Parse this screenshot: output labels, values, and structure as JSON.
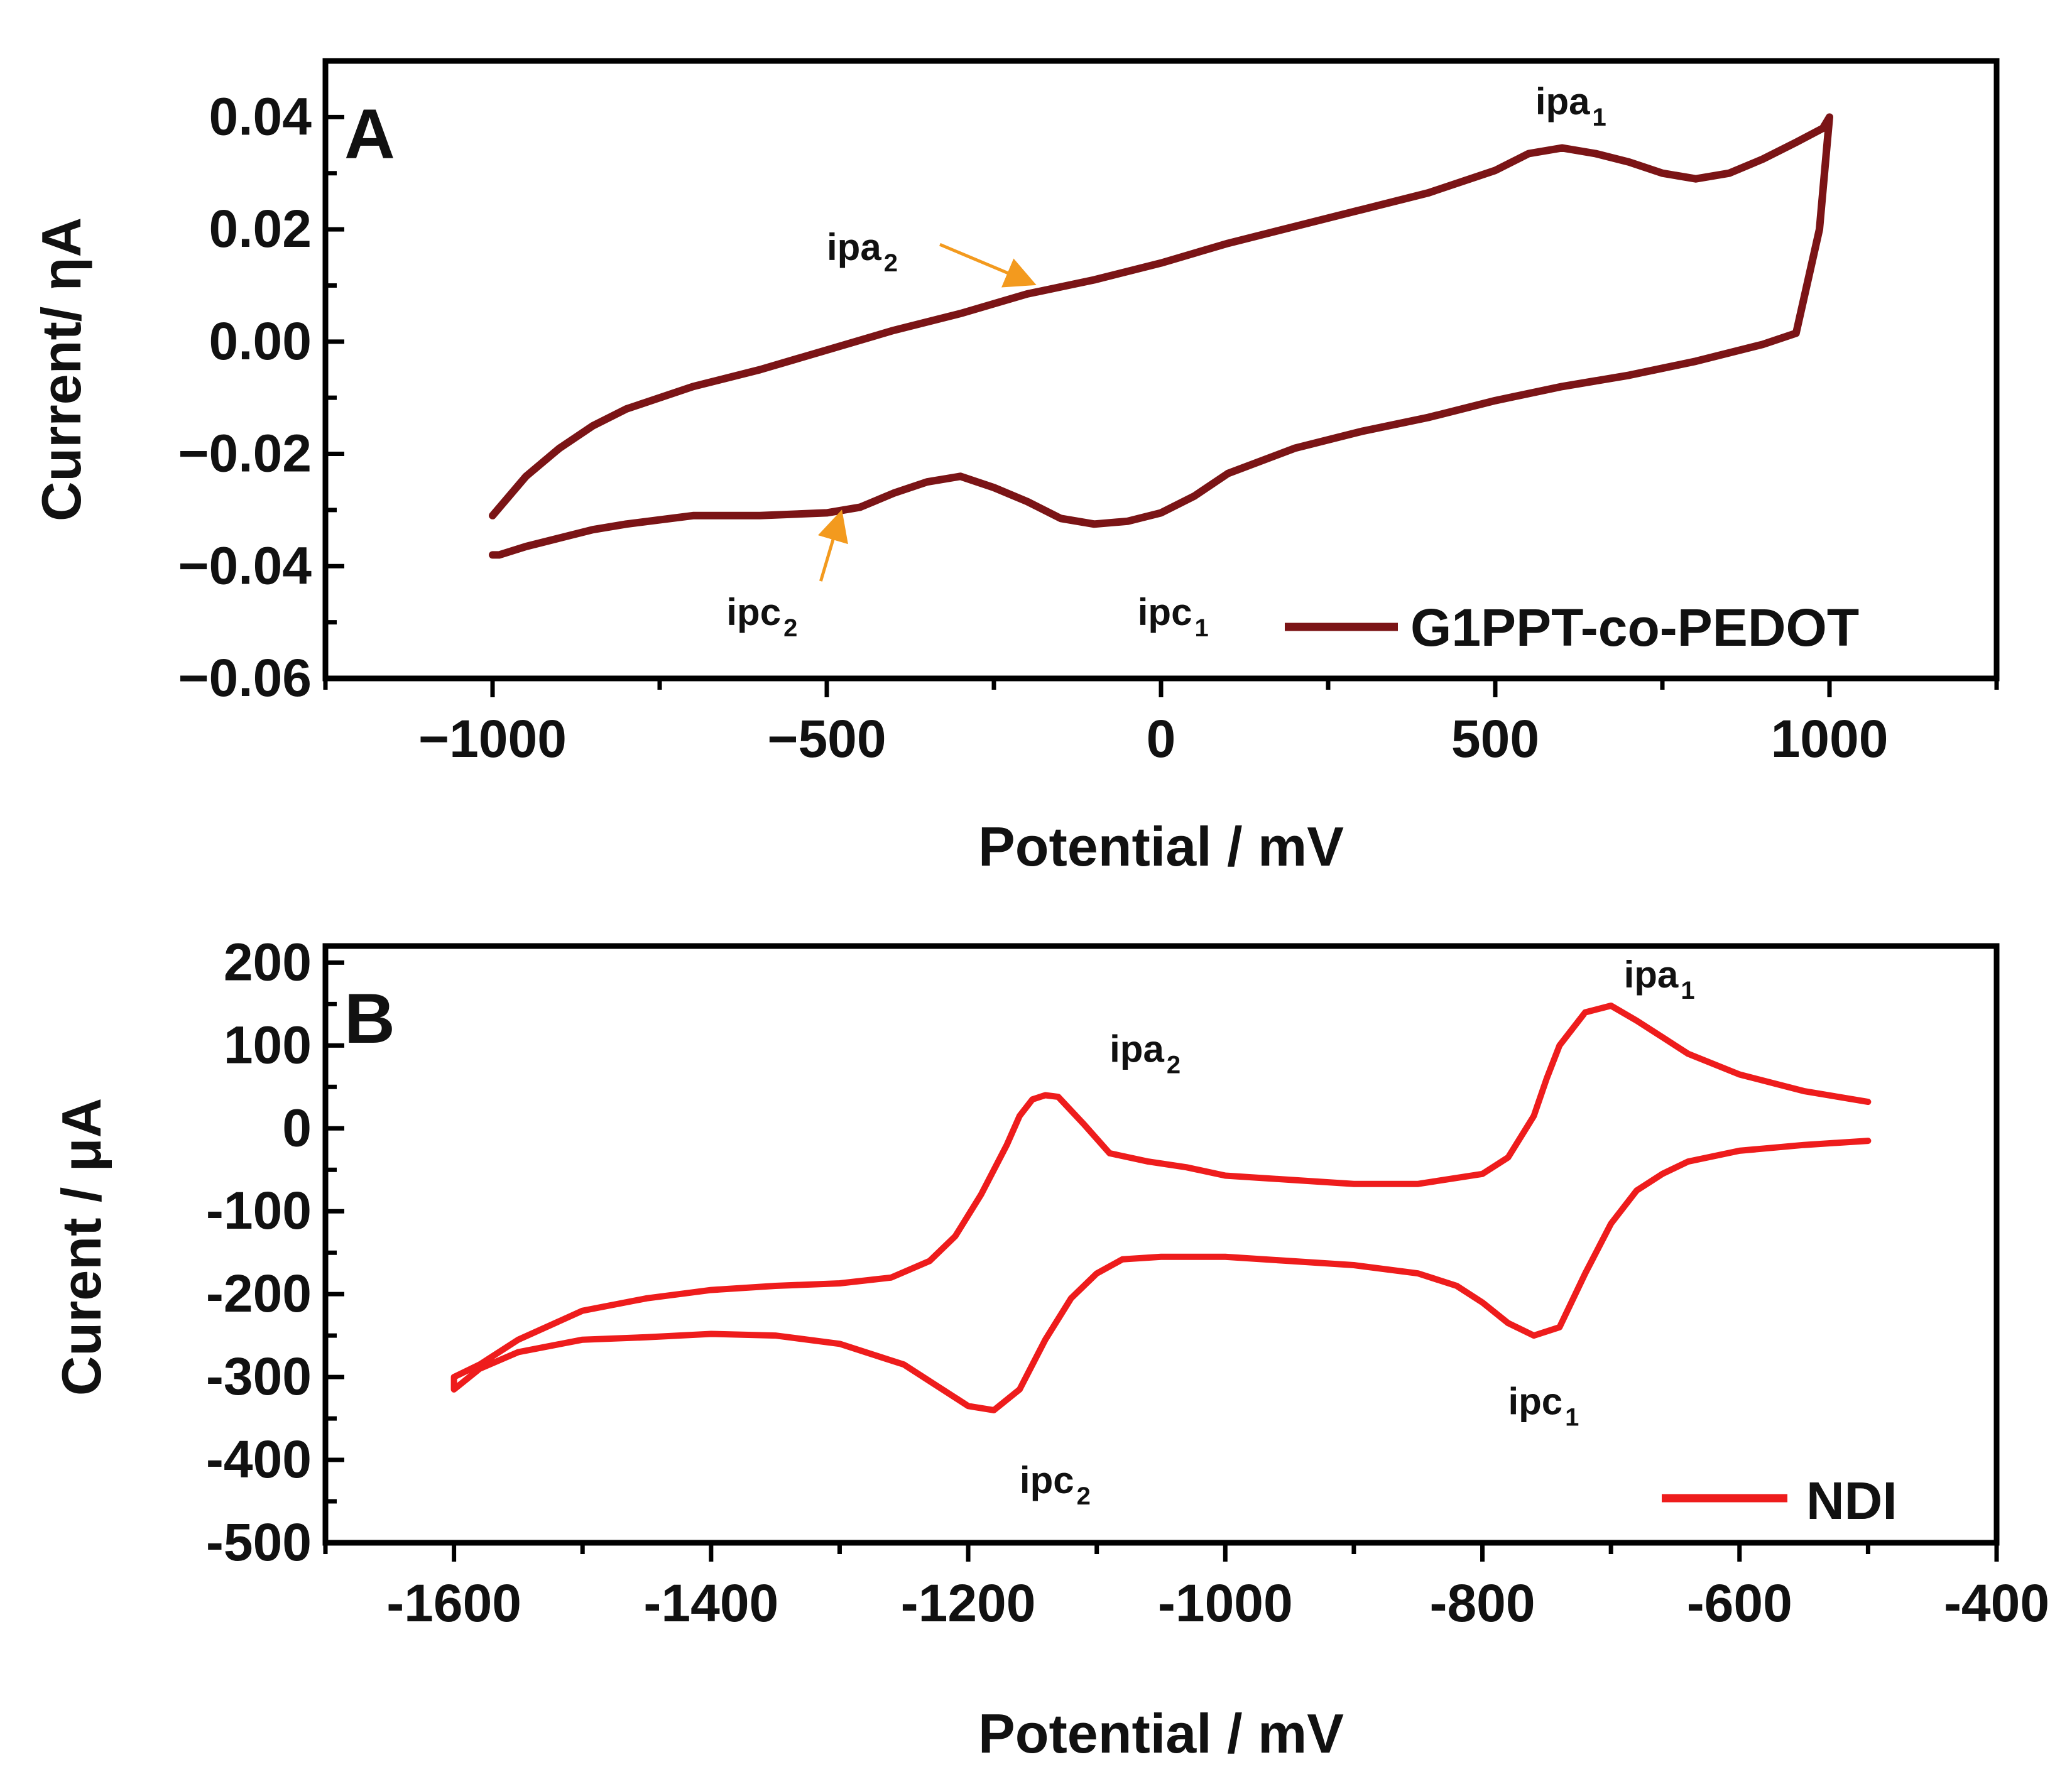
{
  "chart_data": [
    {
      "type": "line",
      "panel_label": "A",
      "xlabel": "Potential / mV",
      "ylabel": "Current/ ηA",
      "xlim": [
        -1250,
        1250
      ],
      "ylim": [
        -0.06,
        0.05
      ],
      "x_ticks": [
        -1000,
        -500,
        0,
        500,
        1000
      ],
      "x_tick_labels": [
        "−1000",
        "−500",
        "0",
        "500",
        "1000"
      ],
      "y_ticks": [
        -0.06,
        -0.04,
        -0.02,
        0.0,
        0.02,
        0.04
      ],
      "y_tick_labels": [
        "−0.06",
        "−0.04",
        "−0.02",
        "0.00",
        "0.02",
        "0.04"
      ],
      "legend": {
        "label": "G1PPT-co-PEDOT",
        "placement": "bottom-right"
      },
      "series": [
        {
          "name": "G1PPT-co-PEDOT",
          "color": "#7b1416",
          "x": [
            -1000,
            -950,
            -900,
            -850,
            -800,
            -700,
            -600,
            -500,
            -400,
            -300,
            -200,
            -100,
            0,
            100,
            200,
            300,
            400,
            500,
            550,
            600,
            650,
            700,
            750,
            800,
            850,
            900,
            950,
            990,
            1000,
            985,
            950,
            900,
            800,
            700,
            600,
            500,
            400,
            300,
            200,
            100,
            50,
            0,
            -50,
            -100,
            -150,
            -200,
            -250,
            -300,
            -350,
            -400,
            -450,
            -500,
            -600,
            -700,
            -800,
            -850,
            -900,
            -950,
            -990,
            -1000
          ],
          "y": [
            -0.031,
            -0.024,
            -0.019,
            -0.015,
            -0.012,
            -0.008,
            -0.005,
            -0.0015,
            0.002,
            0.005,
            0.0085,
            0.011,
            0.014,
            0.0175,
            0.0205,
            0.0235,
            0.0265,
            0.0305,
            0.0335,
            0.0345,
            0.0335,
            0.032,
            0.03,
            0.029,
            0.03,
            0.0325,
            0.0355,
            0.038,
            0.04,
            0.02,
            0.0015,
            -0.0005,
            -0.0035,
            -0.006,
            -0.008,
            -0.0105,
            -0.0135,
            -0.016,
            -0.019,
            -0.0235,
            -0.0275,
            -0.0305,
            -0.032,
            -0.0325,
            -0.0315,
            -0.0285,
            -0.026,
            -0.024,
            -0.025,
            -0.027,
            -0.0295,
            -0.0305,
            -0.031,
            -0.031,
            -0.0325,
            -0.0335,
            -0.035,
            -0.0365,
            -0.038,
            -0.038
          ]
        }
      ],
      "annotations": [
        {
          "main": "ipa",
          "sub": "1",
          "x": 560,
          "y": 0.0405
        },
        {
          "main": "ipa",
          "sub": "2",
          "x": -500,
          "y": 0.0145,
          "arrow_to": [
            -195,
            0.0105
          ]
        },
        {
          "main": "ipc",
          "sub": "2",
          "x": -650,
          "y": -0.0505,
          "arrow_to": [
            -480,
            -0.031
          ]
        },
        {
          "main": "ipc",
          "sub": "1",
          "x": -35,
          "y": -0.0505
        }
      ],
      "arrow_color": "#f39a1e"
    },
    {
      "type": "line",
      "panel_label": "B",
      "xlabel": "Potential / mV",
      "ylabel": "Curent / μA",
      "xlim": [
        -1700,
        -400
      ],
      "ylim": [
        -500,
        220
      ],
      "x_ticks": [
        -1600,
        -1400,
        -1200,
        -1000,
        -800,
        -600,
        -400
      ],
      "x_tick_labels": [
        "-1600",
        "-1400",
        "-1200",
        "-1000",
        "-800",
        "-600",
        "-400"
      ],
      "y_ticks": [
        -500,
        -400,
        -300,
        -200,
        -100,
        0,
        100,
        200
      ],
      "y_tick_labels": [
        "-500",
        "-400",
        "-300",
        "-200",
        "-100",
        "0",
        "100",
        "200"
      ],
      "legend": {
        "label": "NDI",
        "placement": "bottom-right"
      },
      "series": [
        {
          "name": "NDI",
          "color": "#ee1c1c",
          "x": [
            -500,
            -550,
            -600,
            -640,
            -660,
            -680,
            -700,
            -720,
            -740,
            -760,
            -780,
            -800,
            -820,
            -850,
            -900,
            -950,
            -1000,
            -1050,
            -1080,
            -1100,
            -1120,
            -1140,
            -1160,
            -1180,
            -1200,
            -1220,
            -1250,
            -1300,
            -1350,
            -1400,
            -1450,
            -1500,
            -1550,
            -1580,
            -1600,
            -1600,
            -1580,
            -1550,
            -1500,
            -1450,
            -1400,
            -1350,
            -1300,
            -1260,
            -1230,
            -1210,
            -1190,
            -1170,
            -1160,
            -1150,
            -1140,
            -1130,
            -1110,
            -1090,
            -1060,
            -1030,
            -1000,
            -950,
            -900,
            -850,
            -800,
            -780,
            -760,
            -750,
            -740,
            -720,
            -700,
            -680,
            -660,
            -640,
            -600,
            -550,
            -500
          ],
          "y": [
            -15,
            -20,
            -27,
            -40,
            -55,
            -75,
            -115,
            -175,
            -240,
            -250,
            -235,
            -210,
            -190,
            -175,
            -165,
            -160,
            -155,
            -155,
            -158,
            -175,
            -205,
            -255,
            -315,
            -340,
            -335,
            -315,
            -285,
            -260,
            -250,
            -248,
            -252,
            -255,
            -270,
            -290,
            -315,
            -300,
            -285,
            -255,
            -220,
            -205,
            -195,
            -190,
            -187,
            -180,
            -160,
            -130,
            -80,
            -20,
            15,
            35,
            40,
            38,
            5,
            -30,
            -40,
            -47,
            -57,
            -62,
            -67,
            -67,
            -55,
            -35,
            15,
            60,
            100,
            140,
            148,
            130,
            110,
            90,
            65,
            45,
            32
          ]
        }
      ],
      "annotations": [
        {
          "main": "ipa",
          "sub": "1",
          "x": -690,
          "y": 170
        },
        {
          "main": "ipa",
          "sub": "2",
          "x": -1090,
          "y": 80
        },
        {
          "main": "ipc",
          "sub": "1",
          "x": -780,
          "y": -345
        },
        {
          "main": "ipc",
          "sub": "2",
          "x": -1160,
          "y": -440
        }
      ]
    }
  ]
}
